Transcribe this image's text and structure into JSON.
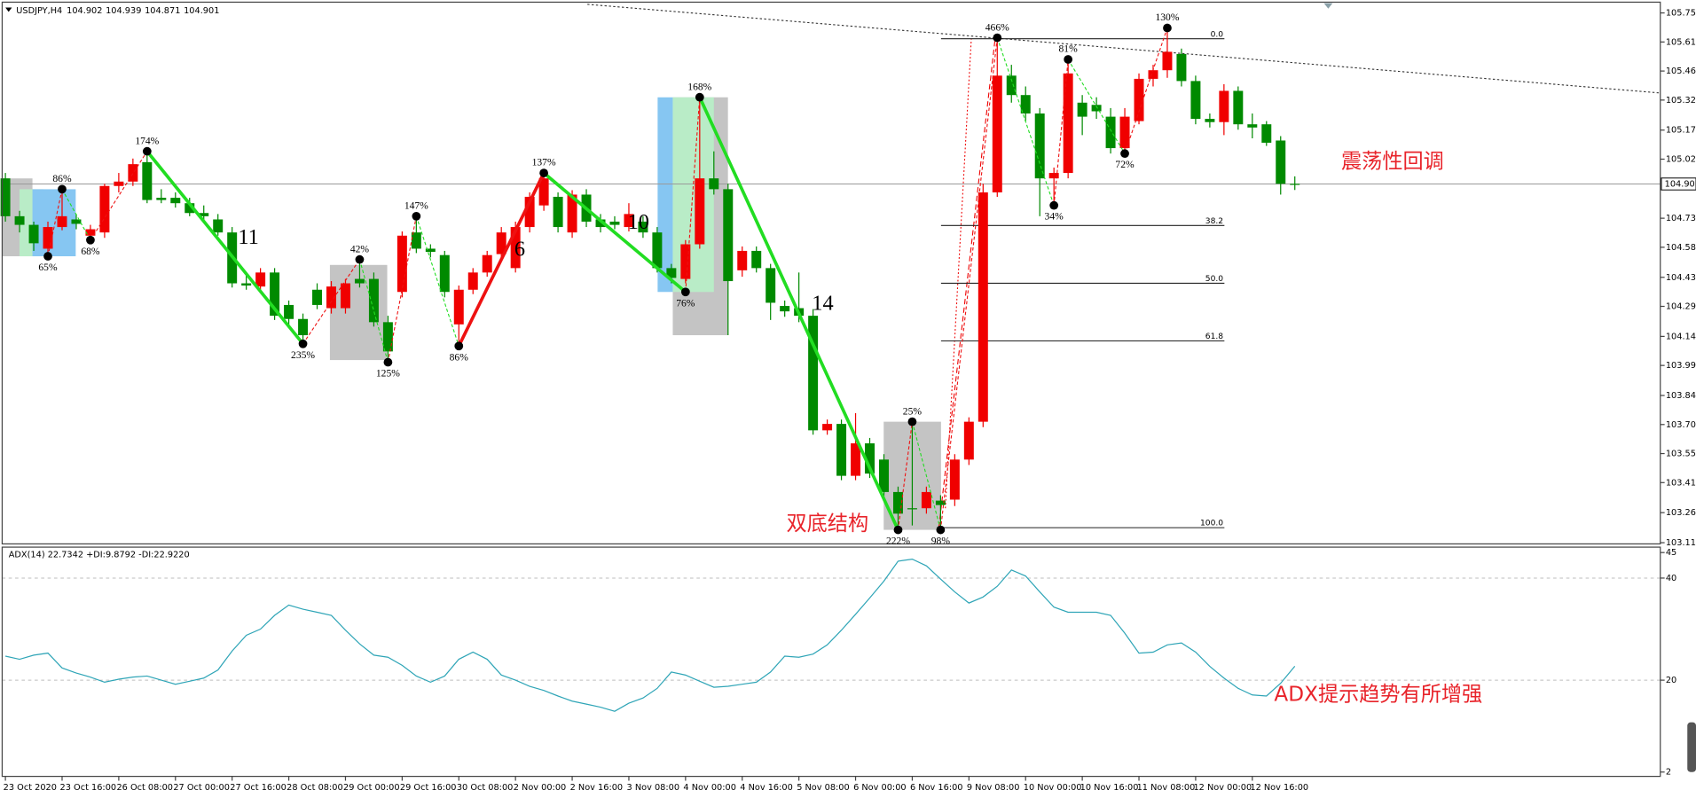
{
  "chart_data": {
    "type": "candlestick",
    "symbol_label": "USDJPY,H4",
    "categories": [
      "23 Oct 2020",
      null,
      null,
      null,
      "23 Oct 16:00",
      null,
      null,
      null,
      "26 Oct 08:00",
      null,
      null,
      null,
      "27 Oct 00:00",
      null,
      null,
      null,
      "27 Oct 16:00",
      null,
      null,
      null,
      "28 Oct 08:00",
      null,
      null,
      null,
      "29 Oct 00:00",
      null,
      null,
      null,
      "29 Oct 16:00",
      null,
      null,
      null,
      "30 Oct 08:00",
      null,
      null,
      null,
      "2 Nov 00:00",
      null,
      null,
      null,
      "2 Nov 16:00",
      null,
      null,
      null,
      "3 Nov 08:00",
      null,
      null,
      null,
      "4 Nov 00:00",
      null,
      null,
      null,
      "4 Nov 16:00",
      null,
      null,
      null,
      "5 Nov 08:00",
      null,
      null,
      null,
      "6 Nov 00:00",
      null,
      null,
      null,
      "6 Nov 16:00",
      null,
      null,
      null,
      "9 Nov 08:00",
      null,
      null,
      null,
      "10 Nov 00:00",
      null,
      null,
      null,
      "10 Nov 16:00",
      null,
      null,
      null,
      "11 Nov 08:00",
      null,
      null,
      null,
      "12 Nov 00:00",
      null,
      null,
      null,
      "12 Nov 16:00",
      null,
      null,
      null
    ],
    "open": [
      104.929,
      104.74,
      104.697,
      104.578,
      104.686,
      104.724,
      104.643,
      104.659,
      104.891,
      104.913,
      105.01,
      104.832,
      104.832,
      104.805,
      104.756,
      104.724,
      104.659,
      104.405,
      104.389,
      104.459,
      104.297,
      104.227,
      104.373,
      104.281,
      104.281,
      104.427,
      104.427,
      104.211,
      104.362,
      104.659,
      104.578,
      104.546,
      104.2,
      104.373,
      104.459,
      104.551,
      104.481,
      104.686,
      104.794,
      104.837,
      104.659,
      104.848,
      104.724,
      104.713,
      104.686,
      104.713,
      104.659,
      104.481,
      104.427,
      104.6,
      104.929,
      104.875,
      104.47,
      104.567,
      104.481,
      104.292,
      104.281,
      104.243,
      103.671,
      103.703,
      103.444,
      103.606,
      103.525,
      103.363,
      103.282,
      103.282,
      103.32,
      103.325,
      103.525,
      103.714,
      104.859,
      105.442,
      105.345,
      105.253,
      104.929,
      104.956,
      105.307,
      105.296,
      105.237,
      105.08,
      105.215,
      105.426,
      105.469,
      105.55,
      105.415,
      105.226,
      105.21,
      105.366,
      105.199,
      105.199,
      105.118,
      104.902
    ],
    "high": [
      104.956,
      104.767,
      104.713,
      104.713,
      104.875,
      104.751,
      104.697,
      104.902,
      104.956,
      105.028,
      105.064,
      104.875,
      104.859,
      104.832,
      104.794,
      104.751,
      104.686,
      104.443,
      104.481,
      104.481,
      104.319,
      104.254,
      104.405,
      104.416,
      104.427,
      104.524,
      104.459,
      104.243,
      104.664,
      104.74,
      104.6,
      104.567,
      104.394,
      104.481,
      104.567,
      104.686,
      104.713,
      104.859,
      104.956,
      104.859,
      104.87,
      104.875,
      104.751,
      104.74,
      104.805,
      104.74,
      104.686,
      104.502,
      104.621,
      105.334,
      105.064,
      104.902,
      104.589,
      104.589,
      104.502,
      104.319,
      104.459,
      104.276,
      103.725,
      103.725,
      103.757,
      103.633,
      103.552,
      103.39,
      103.714,
      103.39,
      103.347,
      103.552,
      103.736,
      104.902,
      105.631,
      105.496,
      105.388,
      105.28,
      104.983,
      105.523,
      105.345,
      105.334,
      105.28,
      105.28,
      105.453,
      105.496,
      105.68,
      105.577,
      105.442,
      105.253,
      105.399,
      105.388,
      105.253,
      105.215,
      105.14,
      104.939
    ],
    "low": [
      104.713,
      104.659,
      104.567,
      104.54,
      104.67,
      104.675,
      104.621,
      104.632,
      104.859,
      104.891,
      104.805,
      104.805,
      104.783,
      104.74,
      104.713,
      104.643,
      104.384,
      104.373,
      104.373,
      104.222,
      104.2,
      104.103,
      104.276,
      104.254,
      104.254,
      104.384,
      104.189,
      104.011,
      104.335,
      104.556,
      104.535,
      104.335,
      104.092,
      104.351,
      104.438,
      104.524,
      104.459,
      104.659,
      104.767,
      104.659,
      104.632,
      104.686,
      104.659,
      104.675,
      104.664,
      104.632,
      104.459,
      104.405,
      104.405,
      104.578,
      104.848,
      104.146,
      104.438,
      104.459,
      104.222,
      104.238,
      104.211,
      103.649,
      103.649,
      103.422,
      103.422,
      103.433,
      103.336,
      103.174,
      103.196,
      103.255,
      103.174,
      103.293,
      103.498,
      103.687,
      104.837,
      105.307,
      105.215,
      104.74,
      104.794,
      104.929,
      105.145,
      105.226,
      105.053,
      105.053,
      105.199,
      105.388,
      105.431,
      105.388,
      105.199,
      105.183,
      105.145,
      105.172,
      105.129,
      105.091,
      104.848,
      104.871
    ],
    "close": [
      104.74,
      104.697,
      104.605,
      104.686,
      104.74,
      104.702,
      104.675,
      104.891,
      104.913,
      105.0,
      104.821,
      104.821,
      104.805,
      104.756,
      104.74,
      104.659,
      104.405,
      104.394,
      104.459,
      104.243,
      104.227,
      104.146,
      104.297,
      104.389,
      104.405,
      104.405,
      104.211,
      104.065,
      104.643,
      104.578,
      104.562,
      104.362,
      104.373,
      104.459,
      104.546,
      104.659,
      104.686,
      104.837,
      104.929,
      104.686,
      104.848,
      104.713,
      104.686,
      104.697,
      104.751,
      104.659,
      104.481,
      104.432,
      104.6,
      104.929,
      104.875,
      104.416,
      104.567,
      104.481,
      104.308,
      104.265,
      104.243,
      103.671,
      103.703,
      103.444,
      103.606,
      103.455,
      103.363,
      103.255,
      103.277,
      103.363,
      103.298,
      103.525,
      103.714,
      104.859,
      105.442,
      105.345,
      105.253,
      104.929,
      104.956,
      105.453,
      105.237,
      105.264,
      105.08,
      105.237,
      105.426,
      105.469,
      105.561,
      105.415,
      105.226,
      105.21,
      105.366,
      105.199,
      105.183,
      105.107,
      104.902,
      104.901
    ],
    "up_color": "#f00000",
    "down_color": "#008a00",
    "ylim": [
      103.104,
      105.798
    ],
    "yticks": [
      105.755,
      {
        "value": 105.61,
        "label": "105.610"
      },
      105.465,
      {
        "value": 105.32,
        "label": "105.320"
      },
      {
        "value": 105.17,
        "label": "105.170"
      },
      105.025,
      {
        "value": 104.73,
        "label": "104.730"
      },
      104.585,
      104.435,
      {
        "value": 104.29,
        "label": "104.290"
      },
      {
        "value": 104.14,
        "label": "104.140"
      },
      103.995,
      103.845,
      {
        "value": 103.7,
        "label": "103.700"
      },
      103.555,
      {
        "value": 103.41,
        "label": "103.410"
      },
      {
        "value": 103.26,
        "label": "103.260"
      },
      {
        "value": 103.11,
        "label": "103.110"
      }
    ],
    "fibonacci": {
      "low": 103.185,
      "high": 105.626,
      "levels": [
        {
          "value": 0,
          "label": "0.0"
        },
        38.2,
        {
          "value": 50,
          "label": "50.0"
        },
        61.8,
        {
          "value": 100,
          "label": "100.0"
        }
      ]
    },
    "zigzag": [
      {
        "bar": 3,
        "price": 104.54,
        "label": "65%"
      },
      {
        "bar": 4,
        "price": 104.875,
        "label": "86%"
      },
      {
        "bar": 6,
        "price": 104.621,
        "label": "68%"
      },
      {
        "bar": 10,
        "price": 105.064,
        "label": "174%"
      },
      {
        "bar": 21,
        "price": 104.103,
        "label": "235%"
      },
      {
        "bar": 25,
        "price": 104.524,
        "label": "42%"
      },
      {
        "bar": 27,
        "price": 104.011,
        "label": "125%"
      },
      {
        "bar": 29,
        "price": 104.74,
        "label": "147%"
      },
      {
        "bar": 32,
        "price": 104.092,
        "label": "86%"
      },
      {
        "bar": 38,
        "price": 104.956,
        "label": "137%"
      },
      {
        "bar": 48,
        "price": 104.362,
        "label": "76%"
      },
      {
        "bar": 49,
        "price": 105.334,
        "label": "168%"
      },
      {
        "bar": 63,
        "price": 103.174,
        "label": "222%"
      },
      {
        "bar": 64,
        "price": 103.714,
        "label": "25%"
      },
      {
        "bar": 66,
        "price": 103.174,
        "label": "98%"
      },
      {
        "bar": 70,
        "price": 105.631,
        "label": "466%"
      },
      {
        "bar": 74,
        "price": 104.794,
        "label": "34%"
      },
      {
        "bar": 75,
        "price": 105.523,
        "label": "81%"
      },
      {
        "bar": 79,
        "price": 105.053,
        "label": "72%"
      },
      {
        "bar": 82,
        "price": 105.68,
        "label": "130%"
      }
    ],
    "zigzag_colors": {
      "up": "#ee1111",
      "down": "#22dd22"
    },
    "waves": [
      {
        "from": 3,
        "to": 4,
        "label": "11"
      },
      {
        "from": 8,
        "to": 9,
        "label": "6"
      },
      {
        "from": 9,
        "to": 10,
        "label": "10"
      },
      {
        "from": 11,
        "to": 12,
        "label": "14"
      }
    ],
    "annotations": [
      "双底结构",
      "震荡性回调",
      "ADX提示趋势有所增强"
    ],
    "annotation_color": "#e8232a",
    "indicator": {
      "type": "line",
      "title": "ADX(14) 22.7342 +DI:9.8792 -DI:22.9220",
      "color": "#2fa5b7",
      "ylim": [
        2,
        45
      ],
      "yticks": [
        45,
        40,
        20,
        2
      ],
      "values": [
        24.7,
        24.1,
        24.9,
        25.3,
        22.4,
        21.4,
        20.6,
        19.6,
        20.2,
        20.6,
        20.8,
        20.0,
        19.2,
        19.8,
        20.4,
        22.0,
        25.7,
        28.8,
        30.0,
        32.7,
        34.7,
        33.9,
        33.3,
        32.7,
        29.8,
        27.1,
        24.9,
        24.5,
        22.9,
        20.8,
        19.6,
        20.8,
        24.1,
        25.5,
        24.1,
        21.0,
        20.0,
        18.8,
        18.0,
        16.9,
        15.9,
        15.3,
        14.7,
        13.9,
        15.5,
        16.5,
        18.4,
        21.6,
        21.0,
        19.8,
        18.6,
        18.8,
        19.2,
        19.6,
        21.6,
        24.7,
        24.5,
        25.1,
        26.9,
        29.8,
        32.9,
        36.1,
        39.4,
        43.3,
        43.7,
        42.4,
        39.8,
        37.3,
        35.1,
        36.3,
        38.4,
        41.6,
        40.4,
        37.3,
        34.3,
        33.3,
        33.3,
        33.3,
        32.7,
        29.2,
        25.3,
        25.5,
        26.9,
        27.3,
        25.5,
        22.7,
        20.4,
        18.4,
        17.1,
        16.9,
        19.4,
        22.7342
      ]
    }
  }
}
